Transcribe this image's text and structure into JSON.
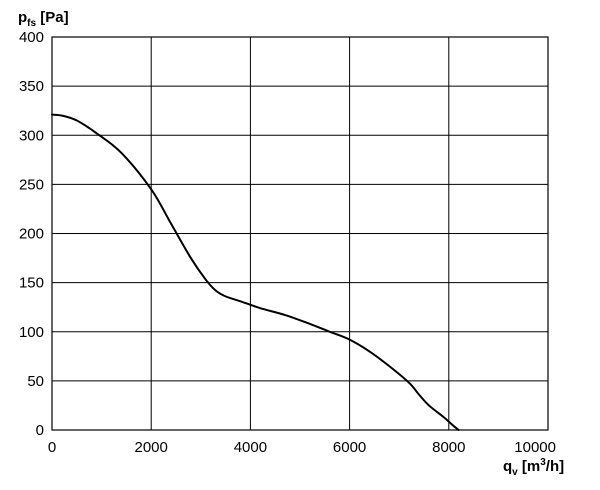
{
  "chart_data": {
    "type": "line",
    "title": "",
    "ylabel": {
      "main": "p",
      "sub": "fs",
      "unit": " [Pa]"
    },
    "xlabel": {
      "main": "q",
      "sub": "v",
      "unit_pre": " [m",
      "unit_sup": "3",
      "unit_post": "/h]"
    },
    "xlim": [
      0,
      10000
    ],
    "ylim": [
      0,
      400
    ],
    "x_ticks": [
      0,
      2000,
      4000,
      6000,
      8000,
      10000
    ],
    "y_ticks": [
      0,
      50,
      100,
      150,
      200,
      250,
      300,
      350,
      400
    ],
    "x_tick_labels": [
      "0",
      "2000",
      "4000",
      "6000",
      "8000",
      "10000"
    ],
    "y_tick_labels": [
      "0",
      "50",
      "100",
      "150",
      "200",
      "250",
      "300",
      "350",
      "400"
    ],
    "grid": true,
    "line_color": "#000000",
    "series": [
      {
        "x": [
          0,
          200,
          500,
          900,
          1400,
          2000,
          2400,
          2800,
          3100,
          3300,
          3500,
          3800,
          4200,
          4700,
          5200,
          5600,
          6000,
          6400,
          6800,
          7200,
          7400,
          7600,
          7900,
          8100,
          8200
        ],
        "y": [
          321,
          320,
          315,
          302,
          282,
          245,
          210,
          175,
          153,
          142,
          136,
          131,
          124,
          117,
          108,
          100,
          92,
          80,
          65,
          48,
          36,
          25,
          13,
          4,
          0
        ]
      }
    ]
  }
}
